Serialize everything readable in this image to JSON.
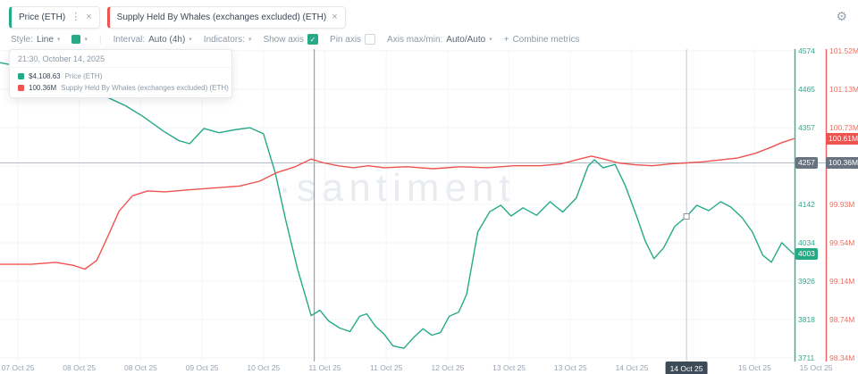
{
  "app": {
    "watermark": "·santiment"
  },
  "colors": {
    "green": "#26a987",
    "red": "#ef5350",
    "badge_grey": "#68737f",
    "date_badge": "#3d4a57"
  },
  "icons": {
    "gear": "⚙",
    "close": "×",
    "menu_dots": "⋮",
    "chevron": "▾",
    "check": "✓",
    "plus": "+"
  },
  "tabs": [
    {
      "label": "Price (ETH)",
      "color": "#26a987"
    },
    {
      "label": "Supply Held By Whales (exchanges excluded) (ETH)",
      "color": "#ef5350"
    }
  ],
  "toolbar": {
    "style_label": "Style:",
    "style_value": "Line",
    "interval_label": "Interval:",
    "interval_value": "Auto (4h)",
    "indicators_label": "Indicators:",
    "show_axis": "Show axis",
    "pin_axis": "Pin axis",
    "axis_label": "Axis max/min:",
    "axis_value": "Auto/Auto",
    "combine_label": "Combine metrics"
  },
  "tooltip": {
    "datetime": "21:30, October 14, 2025",
    "rows": [
      {
        "value": "$4,108.63",
        "label": "Price (ETH)"
      },
      {
        "value": "100.36M",
        "label": "Supply Held By Whales (exchanges excluded) (ETH)"
      }
    ]
  },
  "chart_data": {
    "type": "line",
    "title": "",
    "legend_position": "tooltip",
    "grid": true,
    "x_axis": {
      "labels": [
        "07 Oct 25",
        "08 Oct 25",
        "08 Oct 25",
        "09 Oct 25",
        "10 Oct 25",
        "11 Oct 25",
        "11 Oct 25",
        "12 Oct 25",
        "13 Oct 25",
        "13 Oct 25",
        "14 Oct 25",
        null,
        "15 Oct 25",
        "15 Oct 25"
      ],
      "highlighted_index": 11
    },
    "price_axis": {
      "max": 4574,
      "min": 3711,
      "ticks": [
        "4574",
        "4465",
        "4357",
        null,
        "4142",
        "4034",
        "3926",
        "3818",
        "3711"
      ],
      "current_badge": "4003",
      "crosshair_badge": "4257"
    },
    "supply_axis": {
      "max": 101.52,
      "min": 98.34,
      "ticks": [
        "101.52M",
        "101.13M",
        "100.73M",
        null,
        "99.93M",
        "99.54M",
        "99.14M",
        "98.74M",
        "98.34M"
      ],
      "current_badge": "100.61M",
      "crosshair_badge": "100.36M"
    },
    "crosshair": {
      "x_pct": 86.5,
      "date_label": "14 Oct 25",
      "price_value": 4108.63,
      "supply_value": 100.36
    },
    "annotation_vline_pct": 39.6,
    "series": [
      {
        "name": "Price (ETH)",
        "color": "#26a987",
        "axis": "price",
        "points": [
          [
            0,
            4541
          ],
          [
            4.5,
            4521
          ],
          [
            6.8,
            4486
          ],
          [
            8.4,
            4466
          ],
          [
            9.9,
            4479
          ],
          [
            11.3,
            4466
          ],
          [
            13,
            4449
          ],
          [
            15.8,
            4420
          ],
          [
            18,
            4390
          ],
          [
            20.5,
            4350
          ],
          [
            22.5,
            4322
          ],
          [
            23.9,
            4313
          ],
          [
            25.7,
            4356
          ],
          [
            27.6,
            4344
          ],
          [
            29.5,
            4352
          ],
          [
            31.5,
            4358
          ],
          [
            33.2,
            4341
          ],
          [
            34.7,
            4230
          ],
          [
            36,
            4098
          ],
          [
            37.5,
            3960
          ],
          [
            39.2,
            3830
          ],
          [
            40.3,
            3845
          ],
          [
            41.4,
            3815
          ],
          [
            42.8,
            3795
          ],
          [
            44.1,
            3785
          ],
          [
            45.3,
            3828
          ],
          [
            46.2,
            3835
          ],
          [
            47.3,
            3800
          ],
          [
            48.4,
            3778
          ],
          [
            49.5,
            3745
          ],
          [
            50.9,
            3738
          ],
          [
            52.1,
            3768
          ],
          [
            53.3,
            3793
          ],
          [
            54.4,
            3775
          ],
          [
            55.5,
            3782
          ],
          [
            56.6,
            3828
          ],
          [
            57.8,
            3840
          ],
          [
            58.8,
            3890
          ],
          [
            60.2,
            4065
          ],
          [
            61.7,
            4122
          ],
          [
            63.1,
            4140
          ],
          [
            64.4,
            4110
          ],
          [
            65.9,
            4133
          ],
          [
            67.6,
            4112
          ],
          [
            69.3,
            4150
          ],
          [
            70.9,
            4121
          ],
          [
            72.6,
            4160
          ],
          [
            74.1,
            4250
          ],
          [
            74.9,
            4268
          ],
          [
            76,
            4245
          ],
          [
            77.5,
            4255
          ],
          [
            78.8,
            4195
          ],
          [
            80.2,
            4110
          ],
          [
            81.3,
            4040
          ],
          [
            82.4,
            3990
          ],
          [
            83.6,
            4020
          ],
          [
            85,
            4080
          ],
          [
            86.5,
            4108.63
          ],
          [
            87.8,
            4140
          ],
          [
            89.3,
            4125
          ],
          [
            90.8,
            4150
          ],
          [
            92.1,
            4135
          ],
          [
            93.5,
            4105
          ],
          [
            94.8,
            4065
          ],
          [
            96.1,
            4000
          ],
          [
            97.2,
            3980
          ],
          [
            98.5,
            4035
          ],
          [
            100,
            4003
          ]
        ]
      },
      {
        "name": "Supply Held By Whales (exchanges excluded) (ETH)",
        "color": "#ef5350",
        "axis": "supply",
        "points": [
          [
            0,
            99.31
          ],
          [
            3.9,
            99.31
          ],
          [
            7,
            99.33
          ],
          [
            9.2,
            99.3
          ],
          [
            10.7,
            99.26
          ],
          [
            12.2,
            99.35
          ],
          [
            13.7,
            99.62
          ],
          [
            15,
            99.86
          ],
          [
            16.7,
            100.02
          ],
          [
            18.6,
            100.07
          ],
          [
            20.8,
            100.06
          ],
          [
            23.6,
            100.08
          ],
          [
            27,
            100.1
          ],
          [
            30.2,
            100.12
          ],
          [
            32.7,
            100.17
          ],
          [
            34.9,
            100.26
          ],
          [
            37.2,
            100.32
          ],
          [
            39.2,
            100.4
          ],
          [
            40.8,
            100.36
          ],
          [
            42.6,
            100.33
          ],
          [
            44.5,
            100.31
          ],
          [
            46.4,
            100.33
          ],
          [
            48.4,
            100.31
          ],
          [
            51.2,
            100.32
          ],
          [
            54.6,
            100.3
          ],
          [
            58,
            100.32
          ],
          [
            61.4,
            100.31
          ],
          [
            64.8,
            100.33
          ],
          [
            68.1,
            100.33
          ],
          [
            70.7,
            100.35
          ],
          [
            73,
            100.4
          ],
          [
            74.5,
            100.43
          ],
          [
            76.1,
            100.4
          ],
          [
            77.9,
            100.36
          ],
          [
            80,
            100.34
          ],
          [
            82.2,
            100.33
          ],
          [
            84.5,
            100.35
          ],
          [
            86.5,
            100.36
          ],
          [
            88.4,
            100.37
          ],
          [
            90.7,
            100.39
          ],
          [
            92.9,
            100.41
          ],
          [
            95.2,
            100.46
          ],
          [
            97.1,
            100.52
          ],
          [
            98.5,
            100.57
          ],
          [
            100,
            100.61
          ]
        ]
      }
    ]
  }
}
